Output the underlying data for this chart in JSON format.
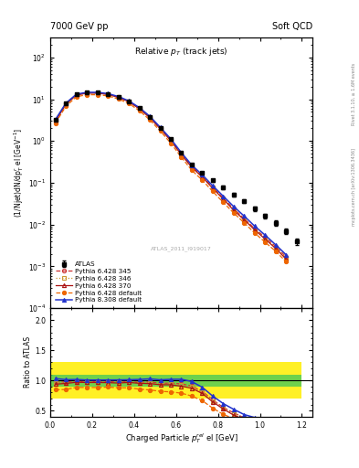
{
  "title_left": "7000 GeV pp",
  "title_right": "Soft QCD",
  "plot_title": "Relative $p_T$ (track jets)",
  "xlabel": "Charged Particle $p^{rel}_T$ el [GeV]",
  "ylabel_main": "(1/Njet)dN/dp$^r_T$ el [GeV$^{-1}$]",
  "ylabel_ratio": "Ratio to ATLAS",
  "watermark": "ATLAS_2011_I919017",
  "right_label": "mcplots.cern.ch [arXiv:1306.3436]",
  "right_label2": "Rivet 3.1.10, ≥ 1.6M events",
  "atlas_x": [
    0.025,
    0.075,
    0.125,
    0.175,
    0.225,
    0.275,
    0.325,
    0.375,
    0.425,
    0.475,
    0.525,
    0.575,
    0.625,
    0.675,
    0.725,
    0.775,
    0.825,
    0.875,
    0.925,
    0.975,
    1.025,
    1.075,
    1.125,
    1.175
  ],
  "atlas_y": [
    3.2,
    8.0,
    13.0,
    14.5,
    14.5,
    13.5,
    11.5,
    9.0,
    6.2,
    3.8,
    2.1,
    1.1,
    0.52,
    0.27,
    0.175,
    0.115,
    0.078,
    0.052,
    0.037,
    0.024,
    0.016,
    0.011,
    0.007,
    0.004
  ],
  "atlas_yerr": [
    0.15,
    0.3,
    0.4,
    0.45,
    0.45,
    0.4,
    0.35,
    0.28,
    0.2,
    0.14,
    0.09,
    0.05,
    0.025,
    0.015,
    0.012,
    0.009,
    0.007,
    0.005,
    0.004,
    0.003,
    0.002,
    0.0015,
    0.001,
    0.0007
  ],
  "py345_x": [
    0.025,
    0.075,
    0.125,
    0.175,
    0.225,
    0.275,
    0.325,
    0.375,
    0.425,
    0.475,
    0.525,
    0.575,
    0.625,
    0.675,
    0.725,
    0.775,
    0.825,
    0.875,
    0.925,
    0.975,
    1.025,
    1.075,
    1.125
  ],
  "py345_y": [
    3.1,
    7.8,
    12.8,
    14.2,
    14.2,
    13.2,
    11.2,
    8.8,
    6.0,
    3.7,
    2.0,
    1.05,
    0.49,
    0.245,
    0.143,
    0.078,
    0.043,
    0.024,
    0.014,
    0.008,
    0.005,
    0.003,
    0.0017
  ],
  "py346_x": [
    0.025,
    0.075,
    0.125,
    0.175,
    0.225,
    0.275,
    0.325,
    0.375,
    0.425,
    0.475,
    0.525,
    0.575,
    0.625,
    0.675,
    0.725,
    0.775,
    0.825,
    0.875,
    0.925,
    0.975,
    1.025,
    1.075,
    1.125
  ],
  "py346_y": [
    3.05,
    7.7,
    12.7,
    14.1,
    14.1,
    13.1,
    11.1,
    8.75,
    5.95,
    3.65,
    1.97,
    1.03,
    0.48,
    0.24,
    0.14,
    0.076,
    0.042,
    0.023,
    0.013,
    0.0077,
    0.0047,
    0.0028,
    0.0016
  ],
  "py370_x": [
    0.025,
    0.075,
    0.125,
    0.175,
    0.225,
    0.275,
    0.325,
    0.375,
    0.425,
    0.475,
    0.525,
    0.575,
    0.625,
    0.675,
    0.725,
    0.775,
    0.825,
    0.875,
    0.925,
    0.975,
    1.025,
    1.075,
    1.125
  ],
  "py370_y": [
    3.0,
    7.6,
    12.6,
    14.0,
    14.0,
    13.0,
    11.0,
    8.7,
    5.9,
    3.6,
    1.95,
    1.02,
    0.47,
    0.235,
    0.137,
    0.074,
    0.041,
    0.022,
    0.013,
    0.0075,
    0.0045,
    0.0027,
    0.0015
  ],
  "pydef_x": [
    0.025,
    0.075,
    0.125,
    0.175,
    0.225,
    0.275,
    0.325,
    0.375,
    0.425,
    0.475,
    0.525,
    0.575,
    0.625,
    0.675,
    0.725,
    0.775,
    0.825,
    0.875,
    0.925,
    0.975,
    1.025,
    1.075,
    1.125
  ],
  "pydef_y": [
    2.7,
    6.8,
    11.5,
    12.8,
    12.8,
    12.0,
    10.1,
    7.9,
    5.3,
    3.2,
    1.72,
    0.89,
    0.41,
    0.2,
    0.116,
    0.062,
    0.034,
    0.019,
    0.011,
    0.0063,
    0.0038,
    0.0023,
    0.0013
  ],
  "py8def_x": [
    0.025,
    0.075,
    0.125,
    0.175,
    0.225,
    0.275,
    0.325,
    0.375,
    0.425,
    0.475,
    0.525,
    0.575,
    0.625,
    0.675,
    0.725,
    0.775,
    0.825,
    0.875,
    0.925,
    0.975,
    1.025,
    1.075,
    1.125
  ],
  "py8def_y": [
    3.3,
    8.1,
    13.2,
    14.6,
    14.6,
    13.6,
    11.6,
    9.1,
    6.3,
    3.9,
    2.12,
    1.12,
    0.53,
    0.265,
    0.155,
    0.085,
    0.048,
    0.027,
    0.016,
    0.0092,
    0.0056,
    0.0033,
    0.0019
  ],
  "color_py345": "#cc3333",
  "color_py346": "#cc9933",
  "color_py370": "#aa1111",
  "color_pydef": "#ee6600",
  "color_py8def": "#2233cc",
  "green_inner": 0.1,
  "yellow_outer": 0.3,
  "xlim": [
    0.0,
    1.25
  ],
  "ylim_main": [
    0.0001,
    300
  ],
  "ylim_ratio": [
    0.4,
    2.2
  ]
}
